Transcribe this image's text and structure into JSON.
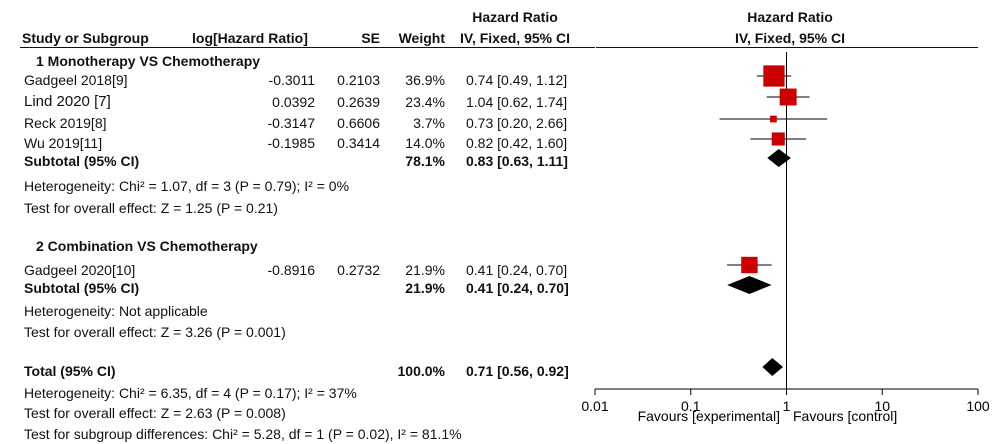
{
  "header": {
    "col_study": "Study or Subgroup",
    "col_loghr": "log[Hazard Ratio]",
    "col_se": "SE",
    "col_weight": "Weight",
    "col_hr_top": "Hazard Ratio",
    "col_hr_sub": "IV, Fixed, 95% CI",
    "plot_hr_top": "Hazard Ratio",
    "plot_hr_sub": "IV, Fixed, 95% CI"
  },
  "groups": [
    {
      "title": "1 Monotherapy VS Chemotherapy",
      "studies": [
        {
          "name": "Gadgeel 2018[9]",
          "loghr": "-0.3011",
          "se": "0.2103",
          "weight": "36.9%",
          "ci": "0.74 [0.49, 1.12]"
        },
        {
          "name": "Lind 2020 [7]",
          "loghr": "0.0392",
          "se": "0.2639",
          "weight": "23.4%",
          "ci": "1.04 [0.62, 1.74]"
        },
        {
          "name": "Reck 2019[8]",
          "loghr": "-0.3147",
          "se": "0.6606",
          "weight": "3.7%",
          "ci": "0.73 [0.20, 2.66]"
        },
        {
          "name": "Wu 2019[11]",
          "loghr": "-0.1985",
          "se": "0.3414",
          "weight": "14.0%",
          "ci": "0.82 [0.42, 1.60]"
        }
      ],
      "subtotal": {
        "label": "Subtotal (95% CI)",
        "weight": "78.1%",
        "ci": "0.83 [0.63, 1.11]"
      },
      "heterogeneity": "Heterogeneity: Chi² = 1.07, df = 3 (P = 0.79); I² = 0%",
      "overall": "Test for overall effect: Z = 1.25 (P = 0.21)"
    },
    {
      "title": "2 Combination VS Chemotherapy",
      "studies": [
        {
          "name": "Gadgeel 2020[10]",
          "loghr": "-0.8916",
          "se": "0.2732",
          "weight": "21.9%",
          "ci": "0.41 [0.24, 0.70]"
        }
      ],
      "subtotal": {
        "label": "Subtotal (95% CI)",
        "weight": "21.9%",
        "ci": "0.41 [0.24, 0.70]"
      },
      "heterogeneity": "Heterogeneity: Not applicable",
      "overall": "Test for overall effect: Z = 3.26 (P = 0.001)"
    }
  ],
  "total": {
    "label": "Total (95% CI)",
    "weight": "100.0%",
    "ci": "0.71 [0.56, 0.92]",
    "heterogeneity": "Heterogeneity: Chi² = 6.35, df = 4 (P = 0.17); I² = 37%",
    "overall": "Test for overall effect: Z = 2.63 (P = 0.008)",
    "subgroup": "Test for subgroup differences: Chi² = 5.28, df = 1 (P = 0.02), I² = 81.1%"
  },
  "axis": {
    "ticks": [
      "0.01",
      "0.1",
      "1",
      "10",
      "100"
    ],
    "favours_left": "Favours [experimental]",
    "favours_right": "Favours [control]"
  },
  "colors": {
    "marker": "#cc0000",
    "diamond": "#000000",
    "line": "#000000"
  },
  "chart_data": {
    "type": "forest",
    "scale": "log",
    "xlim": [
      0.01,
      100
    ],
    "reference_line": 1,
    "studies": [
      {
        "name": "Gadgeel 2018[9]",
        "hr": 0.74,
        "lo": 0.49,
        "hi": 1.12,
        "weight": 36.9
      },
      {
        "name": "Lind 2020 [7]",
        "hr": 1.04,
        "lo": 0.62,
        "hi": 1.74,
        "weight": 23.4
      },
      {
        "name": "Reck 2019[8]",
        "hr": 0.73,
        "lo": 0.2,
        "hi": 2.66,
        "weight": 3.7
      },
      {
        "name": "Wu 2019[11]",
        "hr": 0.82,
        "lo": 0.42,
        "hi": 1.6,
        "weight": 14.0
      },
      {
        "name": "Gadgeel 2020[10]",
        "hr": 0.41,
        "lo": 0.24,
        "hi": 0.7,
        "weight": 21.9
      }
    ],
    "summaries": [
      {
        "name": "Subtotal 1",
        "hr": 0.83,
        "lo": 0.63,
        "hi": 1.11
      },
      {
        "name": "Subtotal 2",
        "hr": 0.41,
        "lo": 0.24,
        "hi": 0.7
      },
      {
        "name": "Total",
        "hr": 0.71,
        "lo": 0.56,
        "hi": 0.92
      }
    ]
  }
}
